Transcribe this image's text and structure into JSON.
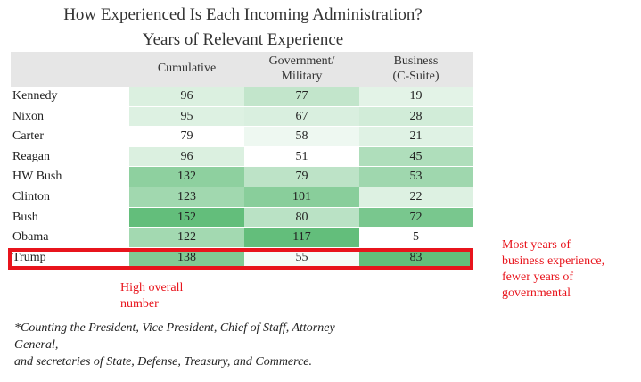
{
  "chart_data": {
    "type": "table",
    "title": "How Experienced Is Each Incoming Administration?",
    "subtitle": "Years of Relevant Experience",
    "columns": [
      "",
      "Cumulative",
      "Government/\nMilitary",
      "Business\n(C-Suite)"
    ],
    "rows": [
      {
        "name": "Kennedy",
        "cumulative": "96",
        "government": "77",
        "business": "19"
      },
      {
        "name": "Nixon",
        "cumulative": "95",
        "government": "67",
        "business": "28"
      },
      {
        "name": "Carter",
        "cumulative": "79",
        "government": "58",
        "business": "21"
      },
      {
        "name": "Reagan",
        "cumulative": "96",
        "government": "51",
        "business": "45"
      },
      {
        "name": "HW Bush",
        "cumulative": "132",
        "government": "79",
        "business": "53"
      },
      {
        "name": "Clinton",
        "cumulative": "123",
        "government": "101",
        "business": "22"
      },
      {
        "name": "Bush",
        "cumulative": "152",
        "government": "80",
        "business": "72"
      },
      {
        "name": "Obama",
        "cumulative": "122",
        "government": "117",
        "business": "5"
      },
      {
        "name": "Trump",
        "cumulative": "138",
        "government": "55",
        "business": "83"
      }
    ],
    "highlighted_row": "Trump",
    "annotations": {
      "left": "High overall\nnumber",
      "right": "Most years of\nbusiness experience,\nfewer years of\ngovernmental"
    },
    "footnote": [
      "*Counting the President, Vice President, Chief of Staff, Attorney",
      "General,",
      "and secretaries of State, Defense, Treasury, and Commerce."
    ],
    "colors": {
      "header_bg": "#e6e6e6",
      "scale_low": "#ffffff",
      "scale_high": "#63be7b",
      "highlight": "#e8141c"
    }
  }
}
